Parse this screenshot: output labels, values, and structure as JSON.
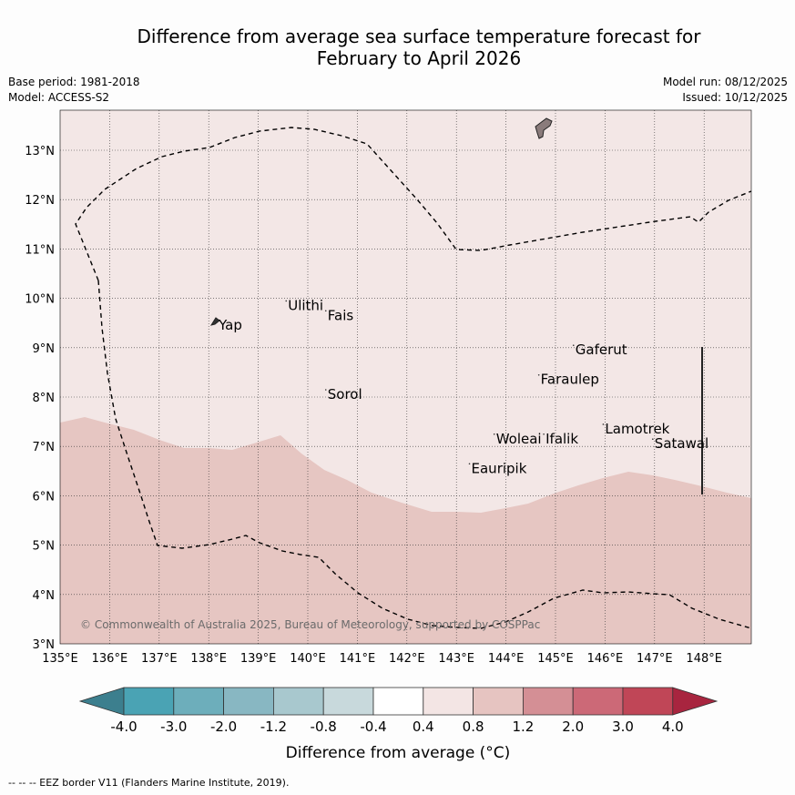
{
  "header": {
    "title_line1": "Difference from average sea surface temperature forecast for",
    "title_line2": "February to April 2026",
    "base_period": "Base period: 1981-2018",
    "model": "Model: ACCESS-S2",
    "model_run": "Model run: 08/12/2025",
    "issued": "Issued: 10/12/2025"
  },
  "map": {
    "lon_range": [
      135,
      149
    ],
    "lat_range": [
      3,
      13.8
    ],
    "x_ticks": [
      "135°E",
      "136°E",
      "137°E",
      "138°E",
      "139°E",
      "140°E",
      "141°E",
      "142°E",
      "143°E",
      "144°E",
      "145°E",
      "146°E",
      "147°E",
      "148°E"
    ],
    "y_ticks": [
      "3°N",
      "4°N",
      "5°N",
      "6°N",
      "7°N",
      "8°N",
      "9°N",
      "10°N",
      "11°N",
      "12°N",
      "13°N"
    ],
    "copyright": "© Commonwealth of Australia 2025, Bureau of Meteorology, supported by COSPPac",
    "islands": [
      {
        "name": "Yap",
        "lon": 138.2,
        "lat": 9.4
      },
      {
        "name": "Ulithi",
        "lon": 139.6,
        "lat": 9.8
      },
      {
        "name": "Fais",
        "lon": 140.4,
        "lat": 9.6
      },
      {
        "name": "Sorol",
        "lon": 140.4,
        "lat": 8.0
      },
      {
        "name": "Gaferut",
        "lon": 145.4,
        "lat": 8.9
      },
      {
        "name": "Faraulep",
        "lon": 144.7,
        "lat": 8.3
      },
      {
        "name": "Woleai",
        "lon": 143.8,
        "lat": 7.1
      },
      {
        "name": "Ifalik",
        "lon": 144.8,
        "lat": 7.1
      },
      {
        "name": "Lamotrek",
        "lon": 146.0,
        "lat": 7.3
      },
      {
        "name": "Satawal",
        "lon": 147.0,
        "lat": 7.0
      },
      {
        "name": "Eauripik",
        "lon": 143.3,
        "lat": 6.5
      }
    ]
  },
  "legend": {
    "colors": [
      "#3c7f8e",
      "#4aa3b4",
      "#6daebb",
      "#88b7c2",
      "#a8c8ce",
      "#c8d9dc",
      "#ffffff",
      "#f3e5e4",
      "#e6c4c1",
      "#d48f95",
      "#cc6977",
      "#c04657",
      "#a8253f"
    ],
    "ticks": [
      "-4.0",
      "-3.0",
      "-2.0",
      "-1.2",
      "-0.8",
      "-0.4",
      "0.4",
      "0.8",
      "1.2",
      "2.0",
      "3.0",
      "4.0"
    ],
    "label": "Difference from average (°C)"
  },
  "footer": {
    "eez_note": "--  --  -- EEZ border V11 (Flanders Marine Institute, 2019)."
  }
}
